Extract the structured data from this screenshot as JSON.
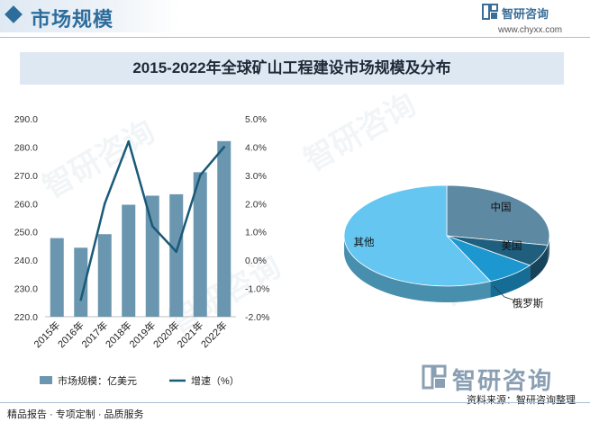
{
  "header": {
    "title": "市场规模"
  },
  "brand": {
    "name": "智研咨询",
    "url": "www.chyxx.com"
  },
  "watermark": "智研咨询",
  "colors": {
    "bar": "#6a96b0",
    "line": "#1a5a78",
    "pie_china": "#5d89a3",
    "pie_usa": "#1f5e7d",
    "pie_russia": "#1d97cf",
    "pie_other": "#64c6f1"
  },
  "chart_data": [
    {
      "type": "bar+line",
      "title": "2015-2022年全球矿山工程建设市场规模及分布",
      "categories": [
        "2015年",
        "2016年",
        "2017年",
        "2018年",
        "2019年",
        "2020年",
        "2021年",
        "2022年"
      ],
      "series": [
        {
          "name": "市场规模：亿美元",
          "type": "bar",
          "axis": "left",
          "values": [
            247.8,
            244.4,
            249.2,
            259.6,
            262.8,
            263.3,
            271.1,
            282.1
          ]
        },
        {
          "name": "增速（%）",
          "type": "line",
          "axis": "right",
          "values": [
            null,
            -1.4,
            2.0,
            4.2,
            1.2,
            0.3,
            3.0,
            4.0
          ]
        }
      ],
      "y_left": {
        "min": 220,
        "max": 290,
        "ticks": [
          "220.0",
          "230.0",
          "240.0",
          "250.0",
          "260.0",
          "270.0",
          "280.0",
          "290.0"
        ]
      },
      "y_right": {
        "min": -2,
        "max": 5,
        "ticks": [
          "-2.0%",
          "-1.0%",
          "0.0%",
          "1.0%",
          "2.0%",
          "3.0%",
          "4.0%",
          "5.0%"
        ]
      },
      "legend_position": "bottom"
    },
    {
      "type": "pie",
      "labels": [
        "中国",
        "美国",
        "俄罗斯",
        "其他"
      ],
      "values": [
        28,
        7,
        8,
        57
      ],
      "label_placement": [
        "inside",
        "inside",
        "outside",
        "inside"
      ]
    }
  ],
  "footer": {
    "left": "精品报告 · 专项定制 · 品质服务",
    "right": "资料来源：智研咨询整理"
  }
}
